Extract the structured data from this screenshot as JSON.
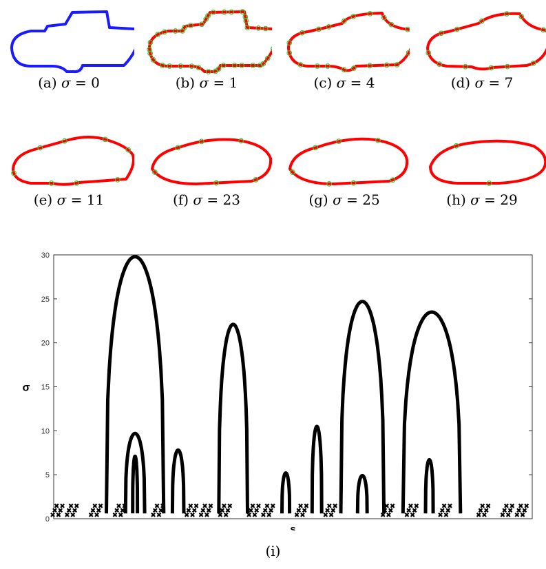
{
  "panels": [
    {
      "label": "(a)",
      "symbol": "σ",
      "value": "0"
    },
    {
      "label": "(b)",
      "symbol": "σ",
      "value": "1"
    },
    {
      "label": "(c)",
      "symbol": "σ",
      "value": "4"
    },
    {
      "label": "(d)",
      "symbol": "σ",
      "value": "7"
    },
    {
      "label": "(e)",
      "symbol": "σ",
      "value": "11"
    },
    {
      "label": "(f)",
      "symbol": "σ",
      "value": "23"
    },
    {
      "label": "(g)",
      "symbol": "σ",
      "value": "25"
    },
    {
      "label": "(h)",
      "symbol": "σ",
      "value": "29"
    }
  ],
  "colors": {
    "original": "#1a1aff",
    "smoothed": "#ff0000",
    "marker": "#33cc33",
    "plot": "#000000"
  },
  "chart_data": {
    "type": "line",
    "xlabel": "s",
    "ylabel": "σ",
    "ylim": [
      0,
      30
    ],
    "yticks": [
      0,
      5,
      10,
      15,
      20,
      25,
      30
    ],
    "caption": "(i)",
    "x_range": [
      0,
      1
    ],
    "arches": [
      {
        "center": 0.17,
        "half_width": 0.06,
        "peak": 29.8
      },
      {
        "center": 0.17,
        "half_width": 0.02,
        "peak": 9.7
      },
      {
        "center": 0.17,
        "half_width": 0.005,
        "peak": 7.1
      },
      {
        "center": 0.26,
        "half_width": 0.012,
        "peak": 7.8
      },
      {
        "center": 0.375,
        "half_width": 0.03,
        "peak": 22.1
      },
      {
        "center": 0.485,
        "half_width": 0.008,
        "peak": 5.2
      },
      {
        "center": 0.55,
        "half_width": 0.01,
        "peak": 10.5
      },
      {
        "center": 0.645,
        "half_width": 0.045,
        "peak": 24.7
      },
      {
        "center": 0.645,
        "half_width": 0.01,
        "peak": 4.9
      },
      {
        "center": 0.79,
        "half_width": 0.06,
        "peak": 23.5
      },
      {
        "center": 0.785,
        "half_width": 0.008,
        "peak": 6.7
      }
    ],
    "low_clusters": [
      0.01,
      0.04,
      0.09,
      0.14,
      0.22,
      0.29,
      0.32,
      0.36,
      0.42,
      0.45,
      0.52,
      0.58,
      0.7,
      0.75,
      0.82,
      0.9,
      0.95,
      0.98
    ]
  }
}
